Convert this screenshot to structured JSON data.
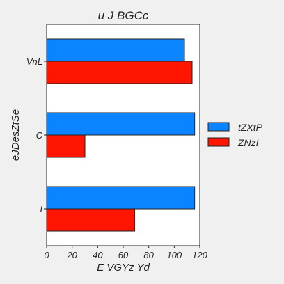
{
  "chart_data": {
    "type": "bar",
    "orientation": "horizontal",
    "title": "u  J BGCc",
    "xlabel": "E VGYz Yd",
    "ylabel": "eJDesZtSe",
    "categories": [
      "VnL",
      "C",
      "I"
    ],
    "series": [
      {
        "name": "tZXtP",
        "color": "#0a84ff",
        "values": [
          108,
          116,
          116
        ]
      },
      {
        "name": "ZNzI",
        "color": "#ff1500",
        "values": [
          114,
          30,
          69
        ]
      }
    ],
    "xlim": [
      0,
      120
    ],
    "xticks": [
      0,
      20,
      40,
      60,
      80,
      100,
      120
    ],
    "grid": false,
    "legend_position": "right"
  }
}
